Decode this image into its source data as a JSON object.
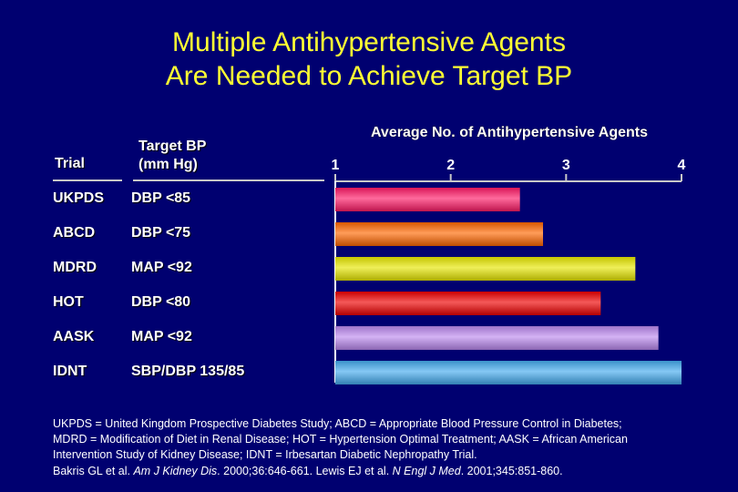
{
  "title": {
    "line1": "Multiple Antihypertensive Agents",
    "line2": "Are Needed to Achieve Target BP"
  },
  "columns": {
    "trial": "Trial",
    "target_line1": "Target BP",
    "target_line2": "(mm Hg)"
  },
  "rows": [
    {
      "trial": "UKPDS",
      "target": "DBP <85"
    },
    {
      "trial": "ABCD",
      "target": "DBP <75"
    },
    {
      "trial": "MDRD",
      "target": "MAP <92"
    },
    {
      "trial": "HOT",
      "target": "DBP <80"
    },
    {
      "trial": "AASK",
      "target": "MAP <92"
    },
    {
      "trial": "IDNT",
      "target": "SBP/DBP 135/85"
    }
  ],
  "chart_data": {
    "type": "bar",
    "orientation": "horizontal",
    "title": "Average No. of Antihypertensive Agents",
    "categories": [
      "UKPDS",
      "ABCD",
      "MDRD",
      "HOT",
      "AASK",
      "IDNT"
    ],
    "values": [
      2.6,
      2.8,
      3.6,
      3.3,
      3.8,
      4.0
    ],
    "colors": [
      "#ff1a66",
      "#ff6600",
      "#e6e600",
      "#ee0000",
      "#bb88ee",
      "#44aaee"
    ],
    "xlim": [
      1,
      4
    ],
    "ticks": [
      "1",
      "2",
      "3",
      "4"
    ],
    "tick_values": [
      1,
      2,
      3,
      4
    ],
    "grid": false
  },
  "footnote": {
    "line1": "UKPDS = United Kingdom Prospective Diabetes Study; ABCD = Appropriate Blood Pressure Control in Diabetes;",
    "line2": "MDRD = Modification of Diet in Renal Disease; HOT = Hypertension Optimal Treatment; AASK = African American",
    "line3": "Intervention Study of Kidney Disease; IDNT = Irbesartan Diabetic Nephropathy Trial.",
    "ref_a": "Bakris GL et al. ",
    "ref_b": "Am J Kidney Dis",
    "ref_c": ". 2000;36:646-661. Lewis EJ et al. ",
    "ref_d": "N Engl J Med",
    "ref_e": ". 2001;345:851-860."
  }
}
